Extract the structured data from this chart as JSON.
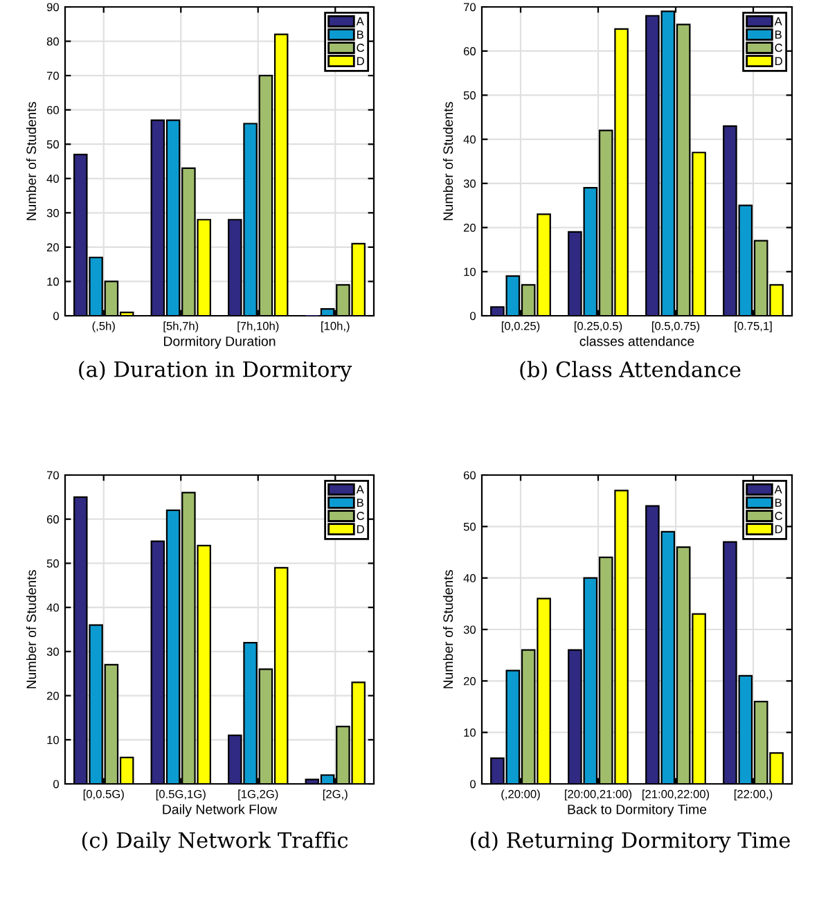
{
  "chart_data": [
    {
      "type": "bar",
      "xlabel": "Dormitory Duration",
      "ylabel": "Number of Students",
      "annotations": [
        "(a) Duration in Dormitory"
      ],
      "categories": [
        "(,5h)",
        "[5h,7h)",
        "[7h,10h)",
        "[10h,)"
      ],
      "series": [
        {
          "name": "A",
          "color": "#302a82",
          "values": [
            47,
            57,
            28,
            0
          ]
        },
        {
          "name": "B",
          "color": "#0c9bd0",
          "values": [
            17,
            57,
            56,
            2
          ]
        },
        {
          "name": "C",
          "color": "#a0bd6c",
          "values": [
            10,
            43,
            70,
            9
          ]
        },
        {
          "name": "D",
          "color": "#ffff00",
          "values": [
            1,
            28,
            82,
            21
          ]
        }
      ],
      "ylim": [
        0,
        90
      ],
      "yticks": [
        0,
        10,
        20,
        30,
        40,
        50,
        60,
        70,
        80,
        90
      ],
      "grid": true,
      "legend": "top right"
    },
    {
      "type": "bar",
      "xlabel": "classes attendance",
      "ylabel": "Number of Students",
      "annotations": [
        "(b) Class Attendance"
      ],
      "categories": [
        "[0,0.25)",
        "[0.25,0.5)",
        "[0.5,0.75)",
        "[0.75,1]"
      ],
      "series": [
        {
          "name": "A",
          "color": "#302a82",
          "values": [
            2,
            19,
            68,
            43
          ]
        },
        {
          "name": "B",
          "color": "#0c9bd0",
          "values": [
            9,
            29,
            69,
            25
          ]
        },
        {
          "name": "C",
          "color": "#a0bd6c",
          "values": [
            7,
            42,
            66,
            17
          ]
        },
        {
          "name": "D",
          "color": "#ffff00",
          "values": [
            23,
            65,
            37,
            7
          ]
        }
      ],
      "ylim": [
        0,
        70
      ],
      "yticks": [
        0,
        10,
        20,
        30,
        40,
        50,
        60,
        70
      ],
      "grid": true,
      "legend": "top right"
    },
    {
      "type": "bar",
      "xlabel": "Daily Network Flow",
      "ylabel": "Number of Students",
      "annotations": [
        "(c) Daily Network Traffic"
      ],
      "categories": [
        "[0,0.5G)",
        "[0.5G,1G)",
        "[1G,2G)",
        "[2G,)"
      ],
      "series": [
        {
          "name": "A",
          "color": "#302a82",
          "values": [
            65,
            55,
            11,
            1
          ]
        },
        {
          "name": "B",
          "color": "#0c9bd0",
          "values": [
            36,
            62,
            32,
            2
          ]
        },
        {
          "name": "C",
          "color": "#a0bd6c",
          "values": [
            27,
            66,
            26,
            13
          ]
        },
        {
          "name": "D",
          "color": "#ffff00",
          "values": [
            6,
            54,
            49,
            23
          ]
        }
      ],
      "ylim": [
        0,
        70
      ],
      "yticks": [
        0,
        10,
        20,
        30,
        40,
        50,
        60,
        70
      ],
      "grid": true,
      "legend": "top right"
    },
    {
      "type": "bar",
      "xlabel": "Back to Dormitory Time",
      "ylabel": "Number of Students",
      "annotations": [
        "(d) Returning Dormitory Time"
      ],
      "categories": [
        "(,20:00)",
        "[20:00,21:00)",
        "[21:00,22:00)",
        "[22:00,)"
      ],
      "series": [
        {
          "name": "A",
          "color": "#302a82",
          "values": [
            5,
            26,
            54,
            47
          ]
        },
        {
          "name": "B",
          "color": "#0c9bd0",
          "values": [
            22,
            40,
            49,
            21
          ]
        },
        {
          "name": "C",
          "color": "#a0bd6c",
          "values": [
            26,
            44,
            46,
            16
          ]
        },
        {
          "name": "D",
          "color": "#ffff00",
          "values": [
            36,
            57,
            33,
            6
          ]
        }
      ],
      "ylim": [
        0,
        60
      ],
      "yticks": [
        0,
        10,
        20,
        30,
        40,
        50,
        60
      ],
      "grid": true,
      "legend": "top right"
    }
  ]
}
